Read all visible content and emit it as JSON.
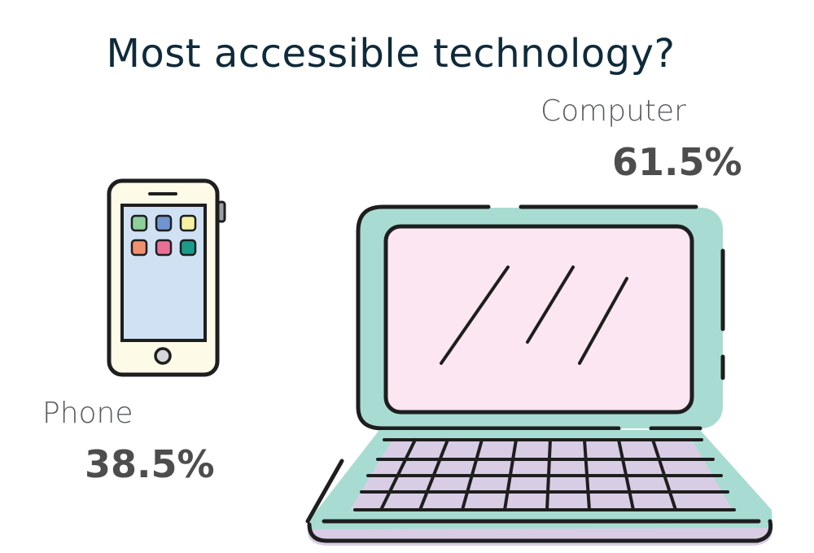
{
  "title": "Most accessible technology?",
  "chart_data": {
    "type": "pie",
    "title": "Most accessible technology?",
    "categories": [
      "Computer",
      "Phone"
    ],
    "values": [
      61.5,
      38.5
    ],
    "value_labels": [
      "61.5%",
      "38.5%"
    ],
    "icons": [
      "laptop-icon",
      "phone-icon"
    ]
  },
  "colors": {
    "title": "#0f2a3a",
    "label": "#555a5c",
    "percent": "#4d4d4d",
    "laptop_body": "#a8dcd3",
    "laptop_screen": "#fbe6f1",
    "laptop_keys": "#d9cde6",
    "phone_body": "#fdfbe8",
    "phone_screen": "#cfe1f3"
  }
}
